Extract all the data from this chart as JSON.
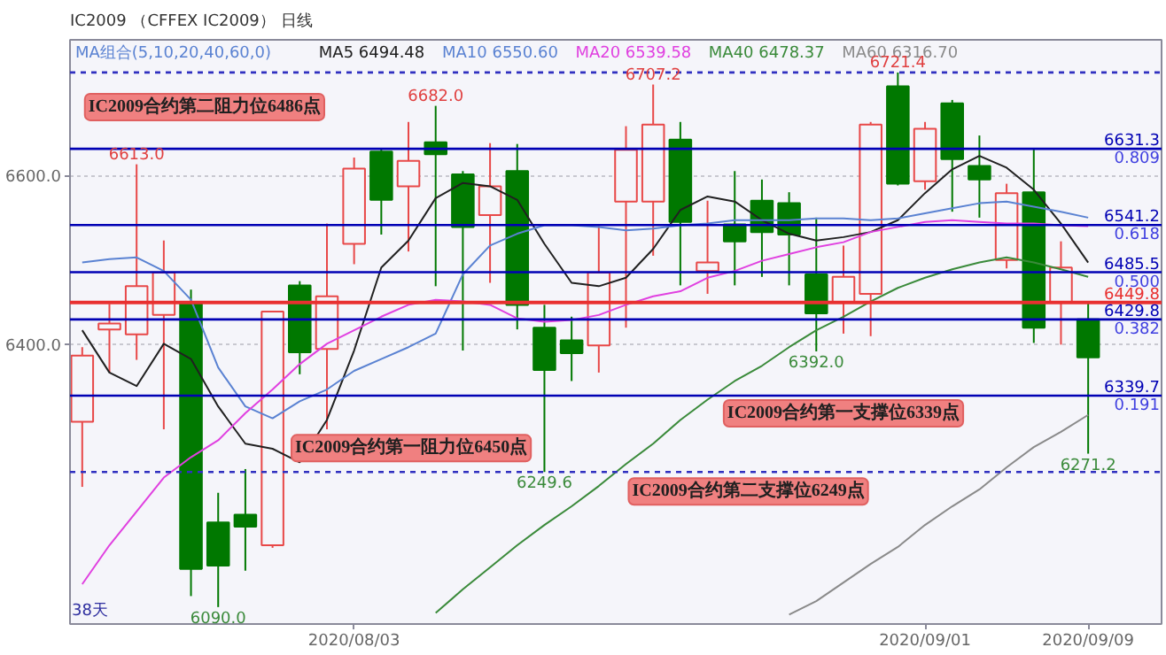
{
  "chart_data": {
    "type": "candlestick",
    "title": "IC2009 （CFFEX IC2009） 日线",
    "subtitle": "MA组合(5,10,20,40,60,0)",
    "categories": [
      null,
      null,
      null,
      null,
      null,
      null,
      null,
      null,
      null,
      null,
      "2020/08/03",
      null,
      null,
      null,
      null,
      null,
      null,
      null,
      null,
      null,
      null,
      null,
      null,
      null,
      null,
      null,
      null,
      null,
      null,
      null,
      null,
      "2020/09/01",
      null,
      null,
      null,
      null,
      null,
      "2020/09/09"
    ],
    "ohlc": [
      [
        6309,
        6397,
        6232,
        6387
      ],
      [
        6418,
        6448,
        6367,
        6425
      ],
      [
        6412,
        6613.0,
        6382,
        6469
      ],
      [
        6435,
        6523,
        6300,
        6485
      ],
      [
        6450,
        6465,
        6103,
        6135
      ],
      [
        6190,
        6225,
        6090.0,
        6139
      ],
      [
        6199,
        6253,
        6133,
        6185
      ],
      [
        6163,
        6440,
        6160,
        6439
      ],
      [
        6470,
        6475,
        6365,
        6391
      ],
      [
        6395,
        6543,
        6300,
        6457
      ],
      [
        6519,
        6621,
        6495,
        6608
      ],
      [
        6628,
        6631,
        6530,
        6571
      ],
      [
        6587,
        6663,
        6510,
        6617
      ],
      [
        6639,
        6682.0,
        6469,
        6625
      ],
      [
        6601,
        6605,
        6393,
        6539
      ],
      [
        6553,
        6638,
        6473,
        6587
      ],
      [
        6605,
        6637,
        6418,
        6447
      ],
      [
        6420,
        6447,
        6249.6,
        6370
      ],
      [
        6405,
        6433,
        6357,
        6390
      ],
      [
        6399,
        6540,
        6367,
        6485
      ],
      [
        6569,
        6658,
        6420,
        6630
      ],
      [
        6569,
        6707.2,
        6505,
        6660
      ],
      [
        6642,
        6663,
        6470,
        6545
      ],
      [
        6487,
        6570,
        6460,
        6497
      ],
      [
        6542,
        6605,
        6470,
        6522
      ],
      [
        6570,
        6595,
        6480,
        6533
      ],
      [
        6567,
        6580,
        6470,
        6530
      ],
      [
        6483,
        6550,
        6392.0,
        6437
      ],
      [
        6450,
        6517,
        6413,
        6480
      ],
      [
        6460,
        6663,
        6410,
        6660
      ],
      [
        6705,
        6721.4,
        6588,
        6590
      ],
      [
        6593,
        6663,
        6583,
        6655
      ],
      [
        6685,
        6689,
        6557,
        6619
      ],
      [
        6611,
        6647,
        6550,
        6595
      ],
      [
        6500,
        6590,
        6490,
        6579
      ],
      [
        6580,
        6631,
        6402,
        6420
      ],
      [
        6450,
        6522,
        6400,
        6491
      ],
      [
        6430,
        6450,
        6271.2,
        6385
      ]
    ],
    "colors": [
      "#e84848",
      "#e84848",
      "#e84848",
      "#e84848",
      "#007800",
      "#007800",
      "#007800",
      "#e84848",
      "#007800",
      "#e84848",
      "#e84848",
      "#007800",
      "#e84848",
      "#007800",
      "#007800",
      "#e84848",
      "#007800",
      "#007800",
      "#007800",
      "#e84848",
      "#e84848",
      "#e84848",
      "#007800",
      "#e84848",
      "#007800",
      "#007800",
      "#007800",
      "#007800",
      "#e84848",
      "#e84848",
      "#007800",
      "#e84848",
      "#007800",
      "#007800",
      "#e84848",
      "#007800",
      "#e84848",
      "#007800"
    ],
    "series": [
      {
        "type": "line",
        "name": "MA5 6494.48",
        "color": "#202020",
        "values": [
          6417,
          6367,
          6351,
          6401,
          6383,
          6327,
          6283,
          6277,
          6261,
          6311,
          6393,
          6491,
          6523,
          6573,
          6591,
          6587,
          6571,
          6519,
          6473,
          6469,
          6479,
          6513,
          6559,
          6575,
          6569,
          6547,
          6531,
          6523,
          6527,
          6533,
          6547,
          6579,
          6607,
          6623,
          6609,
          6583,
          6543,
          6497
        ]
      },
      {
        "type": "line",
        "name": "MA10 6550.60",
        "color": "#5a82d2",
        "values": [
          6497,
          6501,
          6503,
          6487,
          6453,
          6373,
          6327,
          6313,
          6333,
          6347,
          6369,
          6383,
          6397,
          6413,
          6483,
          6517,
          6531,
          6541,
          6541,
          6539,
          6535,
          6537,
          6541,
          6543,
          6547,
          6547,
          6547,
          6549,
          6549,
          6547,
          6549,
          6555,
          6561,
          6567,
          6569,
          6563,
          6557,
          6550
        ]
      },
      {
        "type": "line",
        "name": "MA20 6539.58",
        "color": "#e040e0",
        "values": [
          6117,
          6163,
          6203,
          6243,
          6267,
          6287,
          6319,
          6347,
          6377,
          6401,
          6417,
          6433,
          6447,
          6453,
          6451,
          6447,
          6431,
          6427,
          6429,
          6435,
          6447,
          6457,
          6463,
          6479,
          6487,
          6499,
          6507,
          6515,
          6521,
          6533,
          6539,
          6545,
          6547,
          6545,
          6543,
          6543,
          6541,
          6540
        ]
      },
      {
        "type": "line",
        "name": "MA40 6478.37",
        "color": "#3a8a3a",
        "values": [
          null,
          null,
          null,
          null,
          null,
          null,
          null,
          null,
          null,
          null,
          null,
          null,
          null,
          6083,
          6111,
          6137,
          6163,
          6187,
          6209,
          6233,
          6259,
          6283,
          6311,
          6335,
          6357,
          6375,
          6397,
          6417,
          6433,
          6451,
          6467,
          6479,
          6489,
          6497,
          6503,
          6497,
          6489,
          6480
        ]
      },
      {
        "type": "line",
        "name": "MA60 6316.70",
        "color": "#8a8a8a",
        "values": [
          null,
          null,
          null,
          null,
          null,
          null,
          null,
          null,
          null,
          null,
          null,
          null,
          null,
          null,
          null,
          null,
          null,
          null,
          null,
          null,
          null,
          null,
          null,
          null,
          null,
          null,
          6081,
          6097,
          6119,
          6141,
          6161,
          6187,
          6209,
          6229,
          6255,
          6279,
          6297,
          6317
        ]
      }
    ],
    "ylim": [
      6070,
      6760
    ],
    "yticks": [
      {
        "value": 6400,
        "label": "6400.0"
      },
      {
        "value": 6600,
        "label": "6600.0"
      }
    ],
    "grid": "y",
    "legend": "top",
    "ref_lines": [
      {
        "axis": "y",
        "value": 6721.4,
        "label": null,
        "color": "#3030c0",
        "line_style": "dashed"
      },
      {
        "axis": "y",
        "value": 6631.3,
        "label": "6631.3",
        "color": "#0000b4",
        "line_style": "solid"
      },
      {
        "axis": "y",
        "value": 6541.2,
        "label": "6541.2",
        "color": "#0000b4",
        "line_style": "solid"
      },
      {
        "axis": "y",
        "value": 6485.5,
        "label": "6485.5",
        "color": "#0000b4",
        "line_style": "solid"
      },
      {
        "axis": "y",
        "value": 6449.8,
        "label": "6449.8",
        "color": "#e83030",
        "line_style": "solid"
      },
      {
        "axis": "y",
        "value": 6429.8,
        "label": "6429.8",
        "color": "#0000b4",
        "line_style": "solid"
      },
      {
        "axis": "y",
        "value": 6339.7,
        "label": "6339.7",
        "color": "#0000b4",
        "line_style": "solid"
      },
      {
        "axis": "y",
        "value": 6249.6,
        "label": null,
        "color": "#3030c0",
        "line_style": "dashed"
      }
    ],
    "annotations": [
      "IC2009合约第二阻力位6486点",
      "IC2009合约第一阻力位6450点",
      {
        "text": "IC2009合约第一支撑位6339点",
        "y": 6339.7
      },
      {
        "text": "IC2009合约第二支撑位6249点",
        "y": 6249.6
      },
      {
        "text": "0.809",
        "y": 6631.3
      },
      {
        "text": "0.618",
        "y": 6541.2
      },
      {
        "text": "0.500",
        "y": 6485.5
      },
      {
        "text": "0.382",
        "y": 6429.8
      },
      {
        "text": "0.191",
        "y": 6339.7
      },
      {
        "text": "6613.0",
        "y": 6613.0
      },
      {
        "text": "6682.0",
        "y": 6682.0
      },
      {
        "text": "6707.2",
        "y": 6707.2
      },
      {
        "text": "6721.4",
        "y": 6721.4
      },
      {
        "text": "6090.0",
        "y": 6090.0
      },
      {
        "text": "6249.6",
        "y": 6249.6
      },
      {
        "text": "6392.0",
        "y": 6392.0
      },
      {
        "text": "6271.2",
        "y": 6271.2
      },
      "38天"
    ]
  }
}
